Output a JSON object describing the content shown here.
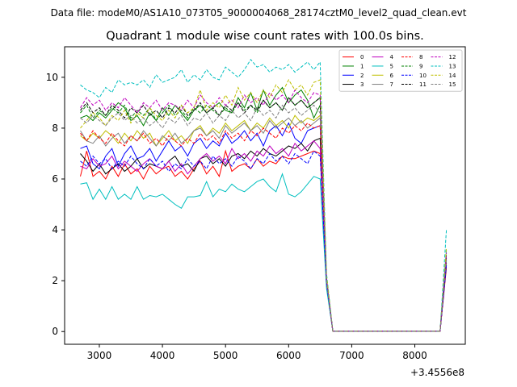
{
  "figure": {
    "header": "Data file: modeM0/AS1A10_073T05_9000004068_28174cztM0_level2_quad_clean.evt"
  },
  "chart_data": {
    "type": "line",
    "title": "Quadrant 1 module wise count rates with 100.0s bins.",
    "xlabel": "",
    "ylabel": "",
    "x_offset_label": "+3.4556e8",
    "xlim": [
      2450,
      8800
    ],
    "ylim": [
      -0.5,
      11.2
    ],
    "xticks": [
      3000,
      4000,
      5000,
      6000,
      7000,
      8000
    ],
    "xtick_labels": [
      "3000",
      "4000",
      "5000",
      "6000",
      "7000",
      "8000"
    ],
    "yticks": [
      0,
      2,
      4,
      6,
      8,
      10
    ],
    "ytick_labels": [
      "0",
      "2",
      "4",
      "6",
      "8",
      "10"
    ],
    "grid": false,
    "legend_position": "top-right",
    "x": [
      2700,
      2800,
      2900,
      3000,
      3100,
      3200,
      3300,
      3400,
      3500,
      3600,
      3700,
      3800,
      3900,
      4000,
      4100,
      4200,
      4300,
      4400,
      4500,
      4600,
      4700,
      4800,
      4900,
      5000,
      5100,
      5200,
      5300,
      5400,
      5500,
      5600,
      5700,
      5800,
      5900,
      6000,
      6100,
      6200,
      6300,
      6400,
      6500,
      6600,
      6700,
      6800,
      6900,
      7000,
      7100,
      7200,
      7300,
      7400,
      7500,
      7600,
      7700,
      7800,
      7900,
      8000,
      8100,
      8200,
      8300,
      8400,
      8500
    ],
    "series": [
      {
        "name": "0",
        "color": "#ff0000",
        "dash": false,
        "values": [
          6.1,
          7.1,
          6.1,
          6.3,
          6.0,
          6.5,
          6.1,
          6.6,
          6.2,
          6.4,
          6.0,
          6.5,
          6.2,
          6.4,
          6.5,
          6.1,
          6.3,
          6.0,
          6.4,
          6.7,
          6.2,
          6.5,
          6.1,
          7.1,
          6.3,
          6.5,
          6.6,
          6.4,
          6.8,
          6.5,
          6.7,
          6.6,
          6.9,
          6.8,
          6.8,
          6.9,
          7.0,
          7.1,
          7.0,
          1.8,
          0.02,
          0.02,
          0.02,
          0.02,
          0.02,
          0.02,
          0.02,
          0.02,
          0.02,
          0.02,
          0.02,
          0.02,
          0.02,
          0.02,
          0.02,
          0.02,
          0.02,
          0.02,
          2.5
        ]
      },
      {
        "name": "1",
        "color": "#008000",
        "dash": false,
        "values": [
          8.4,
          8.5,
          8.3,
          8.6,
          8.4,
          8.7,
          9.0,
          8.8,
          8.3,
          8.5,
          8.1,
          8.6,
          8.3,
          8.8,
          8.5,
          8.9,
          8.6,
          8.3,
          8.7,
          8.9,
          8.6,
          8.8,
          9.0,
          8.7,
          8.6,
          9.2,
          8.8,
          9.4,
          8.7,
          9.5,
          8.9,
          9.3,
          9.6,
          9.0,
          9.3,
          9.5,
          9.1,
          8.4,
          8.9,
          2.0,
          0.02,
          0.02,
          0.02,
          0.02,
          0.02,
          0.02,
          0.02,
          0.02,
          0.02,
          0.02,
          0.02,
          0.02,
          0.02,
          0.02,
          0.02,
          0.02,
          0.02,
          0.02,
          2.8
        ]
      },
      {
        "name": "2",
        "color": "#0000ff",
        "dash": false,
        "values": [
          7.2,
          7.3,
          6.6,
          6.4,
          6.9,
          7.2,
          6.5,
          7.0,
          7.3,
          6.8,
          6.9,
          7.2,
          6.7,
          7.1,
          7.5,
          7.1,
          7.3,
          6.9,
          7.4,
          7.6,
          7.2,
          7.5,
          7.3,
          7.8,
          7.4,
          7.6,
          7.9,
          7.5,
          7.8,
          7.3,
          7.9,
          8.1,
          7.7,
          8.2,
          7.6,
          7.4,
          7.9,
          8.0,
          8.1,
          1.9,
          0.02,
          0.02,
          0.02,
          0.02,
          0.02,
          0.02,
          0.02,
          0.02,
          0.02,
          0.02,
          0.02,
          0.02,
          0.02,
          0.02,
          0.02,
          0.02,
          0.02,
          0.02,
          2.7
        ]
      },
      {
        "name": "3",
        "color": "#000000",
        "dash": false,
        "values": [
          7.0,
          6.7,
          6.3,
          6.6,
          6.2,
          6.4,
          6.6,
          6.3,
          6.5,
          6.8,
          6.4,
          6.6,
          6.5,
          6.4,
          6.7,
          6.9,
          6.5,
          6.6,
          6.3,
          6.8,
          6.9,
          6.6,
          6.8,
          6.5,
          6.9,
          7.0,
          6.8,
          7.1,
          6.9,
          7.2,
          7.0,
          6.9,
          7.1,
          7.3,
          7.2,
          7.4,
          7.1,
          7.5,
          7.6,
          2.0,
          0.02,
          0.02,
          0.02,
          0.02,
          0.02,
          0.02,
          0.02,
          0.02,
          0.02,
          0.02,
          0.02,
          0.02,
          0.02,
          0.02,
          0.02,
          0.02,
          0.02,
          0.02,
          2.6
        ]
      },
      {
        "name": "4",
        "color": "#bf00bf",
        "dash": false,
        "values": [
          6.5,
          6.4,
          6.8,
          6.5,
          6.6,
          6.9,
          6.4,
          6.7,
          6.5,
          6.3,
          6.6,
          6.8,
          6.5,
          6.4,
          6.7,
          6.3,
          6.6,
          6.2,
          6.5,
          6.8,
          7.0,
          6.7,
          6.9,
          6.6,
          7.2,
          6.8,
          7.0,
          6.7,
          7.1,
          6.9,
          7.3,
          7.0,
          7.2,
          6.9,
          7.4,
          7.1,
          7.3,
          7.5,
          7.2,
          1.9,
          0.02,
          0.02,
          0.02,
          0.02,
          0.02,
          0.02,
          0.02,
          0.02,
          0.02,
          0.02,
          0.02,
          0.02,
          0.02,
          0.02,
          0.02,
          0.02,
          0.02,
          0.02,
          2.7
        ]
      },
      {
        "name": "5",
        "color": "#00bfbf",
        "dash": false,
        "values": [
          5.8,
          5.85,
          5.2,
          5.6,
          5.2,
          5.7,
          5.2,
          5.4,
          5.2,
          5.7,
          5.2,
          5.35,
          5.3,
          5.4,
          5.2,
          5.0,
          4.85,
          5.3,
          5.3,
          5.35,
          5.9,
          5.3,
          5.6,
          5.5,
          5.8,
          5.6,
          5.5,
          5.7,
          5.9,
          6.0,
          5.7,
          5.5,
          6.2,
          5.4,
          5.3,
          5.5,
          5.8,
          6.1,
          6.0,
          1.7,
          0.02,
          0.02,
          0.02,
          0.02,
          0.02,
          0.02,
          0.02,
          0.02,
          0.02,
          0.02,
          0.02,
          0.02,
          0.02,
          0.02,
          0.02,
          0.02,
          0.02,
          0.02,
          3.2
        ]
      },
      {
        "name": "6",
        "color": "#bfbf00",
        "dash": false,
        "values": [
          7.7,
          7.5,
          7.8,
          7.6,
          7.9,
          7.7,
          7.4,
          7.8,
          7.5,
          7.9,
          7.6,
          7.8,
          7.3,
          7.6,
          7.9,
          7.5,
          7.7,
          7.4,
          7.9,
          8.1,
          7.7,
          8.0,
          7.8,
          8.2,
          7.9,
          8.1,
          8.3,
          7.9,
          8.2,
          8.0,
          8.4,
          8.1,
          8.3,
          8.0,
          8.5,
          8.2,
          8.4,
          8.3,
          8.5,
          2.0,
          0.02,
          0.02,
          0.02,
          0.02,
          0.02,
          0.02,
          0.02,
          0.02,
          0.02,
          0.02,
          0.02,
          0.02,
          0.02,
          0.02,
          0.02,
          0.02,
          0.02,
          0.02,
          2.9
        ]
      },
      {
        "name": "7",
        "color": "#808080",
        "dash": false,
        "values": [
          7.9,
          7.5,
          7.4,
          7.7,
          7.3,
          7.6,
          7.8,
          7.4,
          7.7,
          7.5,
          7.9,
          7.6,
          7.3,
          7.7,
          7.5,
          7.8,
          7.4,
          7.6,
          7.9,
          8.0,
          7.7,
          7.9,
          7.6,
          8.1,
          7.8,
          8.0,
          8.2,
          7.9,
          8.1,
          7.8,
          8.3,
          8.0,
          8.2,
          8.4,
          8.1,
          8.3,
          8.0,
          8.2,
          8.4,
          2.0,
          0.02,
          0.02,
          0.02,
          0.02,
          0.02,
          0.02,
          0.02,
          0.02,
          0.02,
          0.02,
          0.02,
          0.02,
          0.02,
          0.02,
          0.02,
          0.02,
          0.02,
          0.02,
          2.8
        ]
      },
      {
        "name": "8",
        "color": "#ff0000",
        "dash": true,
        "values": [
          7.8,
          7.5,
          7.9,
          7.6,
          7.4,
          7.8,
          7.5,
          7.3,
          7.7,
          7.5,
          7.8,
          7.4,
          7.6,
          7.3,
          7.7,
          7.5,
          7.3,
          7.6,
          7.4,
          7.8,
          7.5,
          7.7,
          7.4,
          7.9,
          7.6,
          7.8,
          7.5,
          7.9,
          7.7,
          8.0,
          7.8,
          7.6,
          8.0,
          7.8,
          8.1,
          7.9,
          8.2,
          8.0,
          8.1,
          2.0,
          0.02,
          0.02,
          0.02,
          0.02,
          0.02,
          0.02,
          0.02,
          0.02,
          0.02,
          0.02,
          0.02,
          0.02,
          0.02,
          0.02,
          0.02,
          0.02,
          0.02,
          0.02,
          2.9
        ]
      },
      {
        "name": "9",
        "color": "#008000",
        "dash": true,
        "values": [
          8.6,
          8.9,
          8.4,
          8.7,
          8.5,
          8.8,
          8.6,
          8.9,
          8.4,
          8.7,
          8.5,
          8.8,
          8.3,
          8.6,
          8.9,
          8.5,
          8.7,
          8.4,
          8.8,
          8.6,
          8.9,
          8.7,
          8.5,
          8.8,
          8.6,
          9.0,
          8.7,
          8.9,
          8.6,
          9.1,
          8.8,
          9.0,
          8.7,
          9.2,
          8.9,
          9.1,
          8.8,
          9.0,
          9.2,
          2.1,
          0.02,
          0.02,
          0.02,
          0.02,
          0.02,
          0.02,
          0.02,
          0.02,
          0.02,
          0.02,
          0.02,
          0.02,
          0.02,
          0.02,
          0.02,
          0.02,
          0.02,
          0.02,
          3.0
        ]
      },
      {
        "name": "10",
        "color": "#0000ff",
        "dash": true,
        "values": [
          6.7,
          6.5,
          6.9,
          6.6,
          6.8,
          6.4,
          6.7,
          6.5,
          6.9,
          6.6,
          6.4,
          6.8,
          6.5,
          6.7,
          6.3,
          6.6,
          6.4,
          6.8,
          6.5,
          6.7,
          6.4,
          6.9,
          6.6,
          6.8,
          6.5,
          6.9,
          6.7,
          6.4,
          6.8,
          6.6,
          7.0,
          6.7,
          6.9,
          6.6,
          7.0,
          6.8,
          6.6,
          7.1,
          6.9,
          1.9,
          0.02,
          0.02,
          0.02,
          0.02,
          0.02,
          0.02,
          0.02,
          0.02,
          0.02,
          0.02,
          0.02,
          0.02,
          0.02,
          0.02,
          0.02,
          0.02,
          0.02,
          0.02,
          2.6
        ]
      },
      {
        "name": "11",
        "color": "#000000",
        "dash": true,
        "values": [
          8.7,
          9.0,
          8.6,
          8.8,
          8.5,
          8.9,
          8.7,
          8.4,
          8.8,
          8.6,
          8.9,
          8.5,
          8.7,
          8.4,
          8.8,
          8.6,
          8.9,
          8.5,
          8.7,
          9.0,
          8.6,
          8.8,
          8.5,
          8.9,
          8.7,
          9.0,
          8.6,
          8.9,
          8.7,
          9.1,
          8.8,
          9.0,
          8.7,
          9.2,
          8.9,
          9.1,
          8.8,
          9.0,
          9.2,
          2.1,
          0.02,
          0.02,
          0.02,
          0.02,
          0.02,
          0.02,
          0.02,
          0.02,
          0.02,
          0.02,
          0.02,
          0.02,
          0.02,
          0.02,
          0.02,
          0.02,
          0.02,
          0.02,
          3.0
        ]
      },
      {
        "name": "12",
        "color": "#bf00bf",
        "dash": true,
        "values": [
          8.8,
          9.2,
          8.9,
          9.1,
          8.7,
          9.0,
          8.8,
          9.2,
          8.9,
          8.6,
          9.0,
          8.8,
          9.1,
          8.7,
          9.0,
          8.9,
          8.7,
          9.1,
          8.8,
          9.3,
          9.0,
          8.8,
          9.2,
          8.9,
          9.1,
          8.8,
          9.3,
          9.0,
          9.2,
          8.9,
          9.4,
          9.1,
          9.3,
          9.0,
          9.5,
          9.2,
          9.0,
          9.4,
          9.3,
          2.1,
          0.02,
          0.02,
          0.02,
          0.02,
          0.02,
          0.02,
          0.02,
          0.02,
          0.02,
          0.02,
          0.02,
          0.02,
          0.02,
          0.02,
          0.02,
          0.02,
          0.02,
          0.02,
          3.1
        ]
      },
      {
        "name": "13",
        "color": "#00bfbf",
        "dash": true,
        "values": [
          9.7,
          9.5,
          9.4,
          9.2,
          9.6,
          9.4,
          9.9,
          9.7,
          9.8,
          9.7,
          9.9,
          9.6,
          10.1,
          9.8,
          9.9,
          10.0,
          10.3,
          9.8,
          10.1,
          9.9,
          10.3,
          10.0,
          9.9,
          10.4,
          10.2,
          10.0,
          10.3,
          10.7,
          10.4,
          10.5,
          10.2,
          10.4,
          10.3,
          10.5,
          10.2,
          10.4,
          10.6,
          10.3,
          10.6,
          2.3,
          0.02,
          0.02,
          0.02,
          0.02,
          0.02,
          0.02,
          0.02,
          0.02,
          0.02,
          0.02,
          0.02,
          0.02,
          0.02,
          0.02,
          0.02,
          0.02,
          0.02,
          0.02,
          4.0
        ]
      },
      {
        "name": "14",
        "color": "#bfbf00",
        "dash": true,
        "values": [
          8.0,
          8.3,
          8.6,
          8.4,
          8.1,
          8.5,
          8.3,
          8.7,
          8.2,
          8.6,
          8.4,
          8.8,
          8.5,
          8.3,
          8.7,
          8.4,
          8.9,
          8.6,
          8.8,
          9.5,
          8.7,
          9.0,
          8.8,
          9.3,
          8.9,
          9.6,
          9.1,
          9.4,
          9.0,
          9.5,
          9.2,
          9.7,
          9.4,
          9.9,
          9.5,
          9.7,
          9.3,
          9.8,
          9.9,
          2.2,
          0.02,
          0.02,
          0.02,
          0.02,
          0.02,
          0.02,
          0.02,
          0.02,
          0.02,
          0.02,
          0.02,
          0.02,
          0.02,
          0.02,
          0.02,
          0.02,
          0.02,
          0.02,
          3.3
        ]
      },
      {
        "name": "15",
        "color": "#808080",
        "dash": true,
        "values": [
          8.4,
          8.2,
          8.5,
          8.3,
          8.1,
          8.4,
          8.6,
          8.3,
          8.5,
          8.2,
          8.4,
          8.1,
          8.3,
          8.0,
          8.4,
          8.2,
          8.5,
          8.1,
          8.4,
          8.3,
          8.6,
          8.2,
          8.5,
          8.3,
          8.7,
          8.4,
          8.6,
          8.3,
          8.8,
          8.5,
          8.7,
          8.4,
          8.9,
          8.6,
          8.8,
          8.5,
          8.7,
          8.9,
          8.6,
          2.0,
          0.02,
          0.02,
          0.02,
          0.02,
          0.02,
          0.02,
          0.02,
          0.02,
          0.02,
          0.02,
          0.02,
          0.02,
          0.02,
          0.02,
          0.02,
          0.02,
          0.02,
          0.02,
          2.9
        ]
      }
    ]
  }
}
